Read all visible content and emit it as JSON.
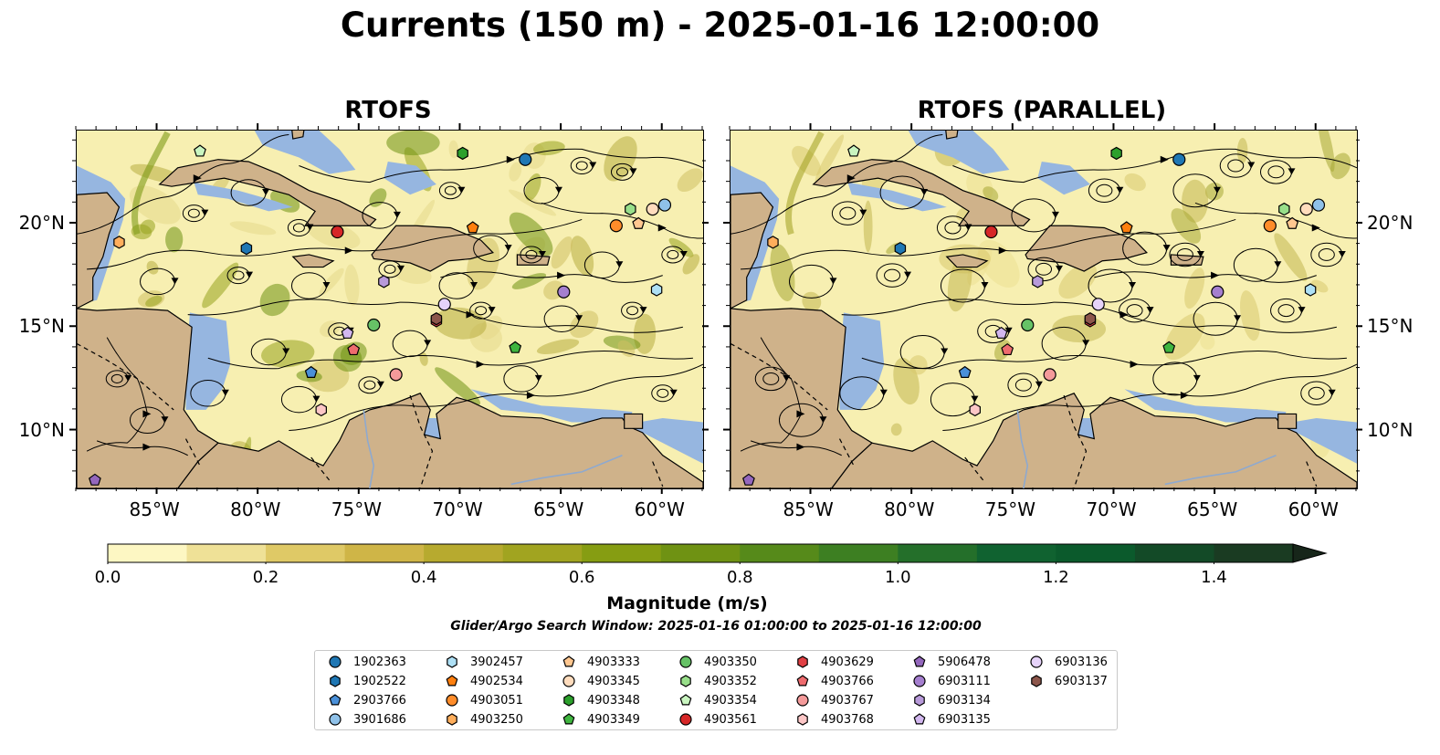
{
  "title": "Currents (150 m) - 2025-01-16 12:00:00",
  "panels": [
    {
      "title": "RTOFS"
    },
    {
      "title": "RTOFS (PARALLEL)"
    }
  ],
  "axes": {
    "lon_ticks": [
      "85°W",
      "80°W",
      "75°W",
      "70°W",
      "65°W",
      "60°W"
    ],
    "lat_ticks": [
      "20°N",
      "15°N",
      "10°N"
    ],
    "extent": {
      "lon": [
        -89,
        -58
      ],
      "lat": [
        7.2,
        24.5
      ]
    }
  },
  "colorbar": {
    "title": "Magnitude (m/s)",
    "ticks": [
      "0.0",
      "0.2",
      "0.4",
      "0.6",
      "0.8",
      "1.0",
      "1.2",
      "1.4"
    ],
    "range": [
      0,
      1.5
    ],
    "extend": "max",
    "colors": [
      "#fdf7c3",
      "#efe197",
      "#dfc966",
      "#cfb547",
      "#b7aa2f",
      "#a1a420",
      "#869d12",
      "#6f9213",
      "#568a1a",
      "#3d7f22",
      "#246f2a",
      "#106230",
      "#0b5a2c",
      "#134a27",
      "#1a3b22",
      "#17261a"
    ]
  },
  "search_window": "Glider/Argo Search Window: 2025-01-16 01:00:00 to 2025-01-16 12:00:00",
  "legend": [
    {
      "id": "1902363",
      "marker": "circle",
      "color": "#1f77b4"
    },
    {
      "id": "1902522",
      "marker": "hexagon",
      "color": "#1f77b4"
    },
    {
      "id": "2903766",
      "marker": "pentagon",
      "color": "#4a90d9"
    },
    {
      "id": "3901686",
      "marker": "circle",
      "color": "#8fc1e9"
    },
    {
      "id": "3902457",
      "marker": "hexagon",
      "color": "#aee0f5"
    },
    {
      "id": "4902534",
      "marker": "pentagon",
      "color": "#ff7f0e"
    },
    {
      "id": "4903051",
      "marker": "circle",
      "color": "#ff8c2a"
    },
    {
      "id": "4903250",
      "marker": "hexagon",
      "color": "#ffae5c"
    },
    {
      "id": "4903333",
      "marker": "pentagon",
      "color": "#ffc790"
    },
    {
      "id": "4903345",
      "marker": "circle",
      "color": "#ffdcbd"
    },
    {
      "id": "4903348",
      "marker": "hexagon",
      "color": "#2ca02c"
    },
    {
      "id": "4903349",
      "marker": "pentagon",
      "color": "#3fb53f"
    },
    {
      "id": "4903350",
      "marker": "circle",
      "color": "#66c266"
    },
    {
      "id": "4903352",
      "marker": "hexagon",
      "color": "#98df8a"
    },
    {
      "id": "4903354",
      "marker": "pentagon",
      "color": "#c9f5c0"
    },
    {
      "id": "4903561",
      "marker": "circle",
      "color": "#d62728"
    },
    {
      "id": "4903629",
      "marker": "hexagon",
      "color": "#e04044"
    },
    {
      "id": "4903766",
      "marker": "pentagon",
      "color": "#ee6b6e"
    },
    {
      "id": "4903767",
      "marker": "circle",
      "color": "#f49a9a"
    },
    {
      "id": "4903768",
      "marker": "hexagon",
      "color": "#fcc6c6"
    },
    {
      "id": "5906478",
      "marker": "pentagon",
      "color": "#9467bd"
    },
    {
      "id": "6903111",
      "marker": "circle",
      "color": "#a57fcf"
    },
    {
      "id": "6903134",
      "marker": "hexagon",
      "color": "#b89ada"
    },
    {
      "id": "6903135",
      "marker": "pentagon",
      "color": "#d2b7ef"
    },
    {
      "id": "6903136",
      "marker": "circle",
      "color": "#e6d3fa"
    },
    {
      "id": "6903137",
      "marker": "hexagon",
      "color": "#8c564b"
    }
  ],
  "floats": [
    {
      "id": "1902363",
      "lon": -66.8,
      "lat": 23.1
    },
    {
      "id": "1902522",
      "lon": -80.6,
      "lat": 18.8
    },
    {
      "id": "2903766",
      "lon": -77.4,
      "lat": 12.8
    },
    {
      "id": "3901686",
      "lon": -59.9,
      "lat": 20.9
    },
    {
      "id": "3902457",
      "lon": -60.3,
      "lat": 16.8
    },
    {
      "id": "4902534",
      "lon": -69.4,
      "lat": 19.8
    },
    {
      "id": "4903051",
      "lon": -62.3,
      "lat": 19.9
    },
    {
      "id": "4903250",
      "lon": -86.9,
      "lat": 19.1
    },
    {
      "id": "4903333",
      "lon": -61.2,
      "lat": 20.0
    },
    {
      "id": "4903345",
      "lon": -60.5,
      "lat": 20.7
    },
    {
      "id": "4903348",
      "lon": -69.9,
      "lat": 23.4
    },
    {
      "id": "4903349",
      "lon": -67.3,
      "lat": 14.0
    },
    {
      "id": "4903350",
      "lon": -74.3,
      "lat": 15.1
    },
    {
      "id": "4903352",
      "lon": -61.6,
      "lat": 20.7
    },
    {
      "id": "4903354",
      "lon": -82.9,
      "lat": 23.5
    },
    {
      "id": "4903561",
      "lon": -76.1,
      "lat": 19.6
    },
    {
      "id": "4903629",
      "lon": -71.2,
      "lat": 15.3
    },
    {
      "id": "4903766",
      "lon": -75.3,
      "lat": 13.9
    },
    {
      "id": "4903767",
      "lon": -73.2,
      "lat": 12.7
    },
    {
      "id": "4903768",
      "lon": -76.9,
      "lat": 11.0
    },
    {
      "id": "5906478",
      "lon": -88.1,
      "lat": 7.6
    },
    {
      "id": "6903111",
      "lon": -64.9,
      "lat": 16.7
    },
    {
      "id": "6903134",
      "lon": -73.8,
      "lat": 17.2
    },
    {
      "id": "6903135",
      "lon": -75.6,
      "lat": 14.7
    },
    {
      "id": "6903136",
      "lon": -70.8,
      "lat": 16.1
    },
    {
      "id": "6903137",
      "lon": -71.2,
      "lat": 15.4
    }
  ]
}
